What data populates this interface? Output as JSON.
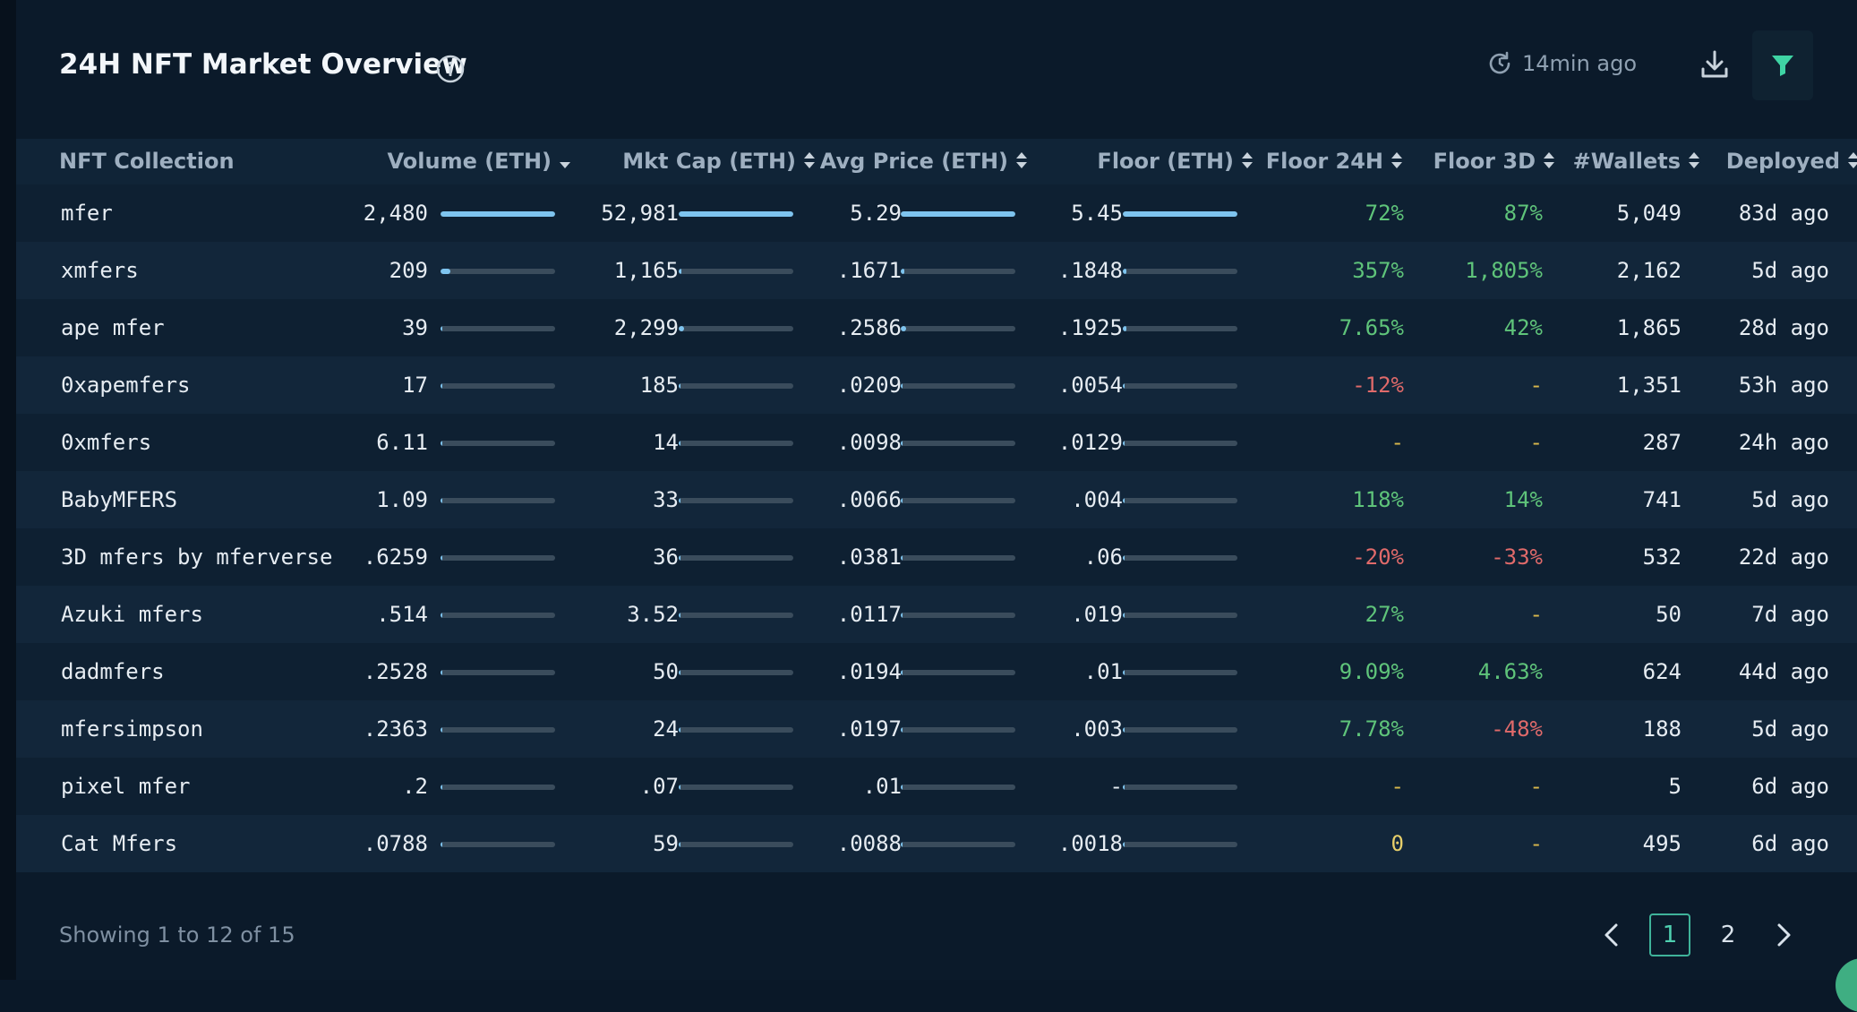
{
  "header": {
    "title": "24H NFT Market Overview",
    "refresh_text": "14min ago"
  },
  "columns": [
    "NFT Collection",
    "Volume (ETH)",
    "Mkt Cap (ETH)",
    "Avg Price (ETH)",
    "Floor (ETH)",
    "Floor 24H",
    "Floor 3D",
    "#Wallets",
    "Deployed"
  ],
  "rows": [
    {
      "name": "mfer",
      "volume": "2,480",
      "vol_frac": 1.0,
      "mktcap": "52,981",
      "mc_frac": 1.0,
      "avg": "5.29",
      "avg_frac": 1.0,
      "floor": "5.45",
      "floor_frac": 1.0,
      "f24": "72%",
      "f24_t": "pos",
      "f3d": "87%",
      "f3d_t": "pos",
      "wallets": "5,049",
      "deployed": "83d ago"
    },
    {
      "name": "xmfers",
      "volume": "209",
      "vol_frac": 0.084,
      "mktcap": "1,165",
      "mc_frac": 0.022,
      "avg": ".1671",
      "avg_frac": 0.032,
      "floor": ".1848",
      "floor_frac": 0.034,
      "f24": "357%",
      "f24_t": "pos",
      "f3d": "1,805%",
      "f3d_t": "pos",
      "wallets": "2,162",
      "deployed": "5d ago"
    },
    {
      "name": "ape mfer",
      "volume": "39",
      "vol_frac": 0.016,
      "mktcap": "2,299",
      "mc_frac": 0.043,
      "avg": ".2586",
      "avg_frac": 0.049,
      "floor": ".1925",
      "floor_frac": 0.035,
      "f24": "7.65%",
      "f24_t": "pos",
      "f3d": "42%",
      "f3d_t": "pos",
      "wallets": "1,865",
      "deployed": "28d ago"
    },
    {
      "name": "0xapemfers",
      "volume": "17",
      "vol_frac": 0.007,
      "mktcap": "185",
      "mc_frac": 0.0035,
      "avg": ".0209",
      "avg_frac": 0.004,
      "floor": ".0054",
      "floor_frac": 0.001,
      "f24": "-12%",
      "f24_t": "neg",
      "f3d": "-",
      "f3d_t": "dash",
      "wallets": "1,351",
      "deployed": "53h ago"
    },
    {
      "name": "0xmfers",
      "volume": "6.11",
      "vol_frac": 0.0025,
      "mktcap": "14",
      "mc_frac": 0.0003,
      "avg": ".0098",
      "avg_frac": 0.002,
      "floor": ".0129",
      "floor_frac": 0.002,
      "f24": "-",
      "f24_t": "dash",
      "f3d": "-",
      "f3d_t": "dash",
      "wallets": "287",
      "deployed": "24h ago"
    },
    {
      "name": "BabyMFERS",
      "volume": "1.09",
      "vol_frac": 0.0004,
      "mktcap": "33",
      "mc_frac": 0.0006,
      "avg": ".0066",
      "avg_frac": 0.001,
      "floor": ".004",
      "floor_frac": 0.001,
      "f24": "118%",
      "f24_t": "pos",
      "f3d": "14%",
      "f3d_t": "pos",
      "wallets": "741",
      "deployed": "5d ago"
    },
    {
      "name": "3D mfers by mferverse",
      "volume": ".6259",
      "vol_frac": 0.0003,
      "mktcap": "36",
      "mc_frac": 0.0007,
      "avg": ".0381",
      "avg_frac": 0.007,
      "floor": ".06",
      "floor_frac": 0.011,
      "f24": "-20%",
      "f24_t": "neg",
      "f3d": "-33%",
      "f3d_t": "neg",
      "wallets": "532",
      "deployed": "22d ago"
    },
    {
      "name": "Azuki mfers",
      "volume": ".514",
      "vol_frac": 0.0002,
      "mktcap": "3.52",
      "mc_frac": 0.0001,
      "avg": ".0117",
      "avg_frac": 0.002,
      "floor": ".019",
      "floor_frac": 0.003,
      "f24": "27%",
      "f24_t": "pos",
      "f3d": "-",
      "f3d_t": "dash",
      "wallets": "50",
      "deployed": "7d ago"
    },
    {
      "name": "dadmfers",
      "volume": ".2528",
      "vol_frac": 0.0001,
      "mktcap": "50",
      "mc_frac": 0.0009,
      "avg": ".0194",
      "avg_frac": 0.004,
      "floor": ".01",
      "floor_frac": 0.002,
      "f24": "9.09%",
      "f24_t": "pos",
      "f3d": "4.63%",
      "f3d_t": "pos",
      "wallets": "624",
      "deployed": "44d ago"
    },
    {
      "name": "mfersimpson",
      "volume": ".2363",
      "vol_frac": 0.0001,
      "mktcap": "24",
      "mc_frac": 0.0005,
      "avg": ".0197",
      "avg_frac": 0.004,
      "floor": ".003",
      "floor_frac": 0.001,
      "f24": "7.78%",
      "f24_t": "pos",
      "f3d": "-48%",
      "f3d_t": "neg",
      "wallets": "188",
      "deployed": "5d ago"
    },
    {
      "name": "pixel mfer",
      "volume": ".2",
      "vol_frac": 0.0001,
      "mktcap": ".07",
      "mc_frac": 0.0,
      "avg": ".01",
      "avg_frac": 0.002,
      "floor": "-",
      "floor_frac": 0.0,
      "f24": "-",
      "f24_t": "dash",
      "f3d": "-",
      "f3d_t": "dash",
      "wallets": "5",
      "deployed": "6d ago"
    },
    {
      "name": "Cat Mfers",
      "volume": ".0788",
      "vol_frac": 0.0,
      "mktcap": "59",
      "mc_frac": 0.0011,
      "avg": ".0088",
      "avg_frac": 0.002,
      "floor": ".0018",
      "floor_frac": 0.0003,
      "f24": "0",
      "f24_t": "neu",
      "f3d": "-",
      "f3d_t": "dash",
      "wallets": "495",
      "deployed": "6d ago"
    }
  ],
  "footer": {
    "showing": "Showing 1 to 12 of 15",
    "page1": "1",
    "page2": "2"
  },
  "colors": {
    "accent": "#3fb39a",
    "bar_fill": "#7ec4ef",
    "positive": "#5fc47a",
    "negative": "#e06a6a"
  }
}
